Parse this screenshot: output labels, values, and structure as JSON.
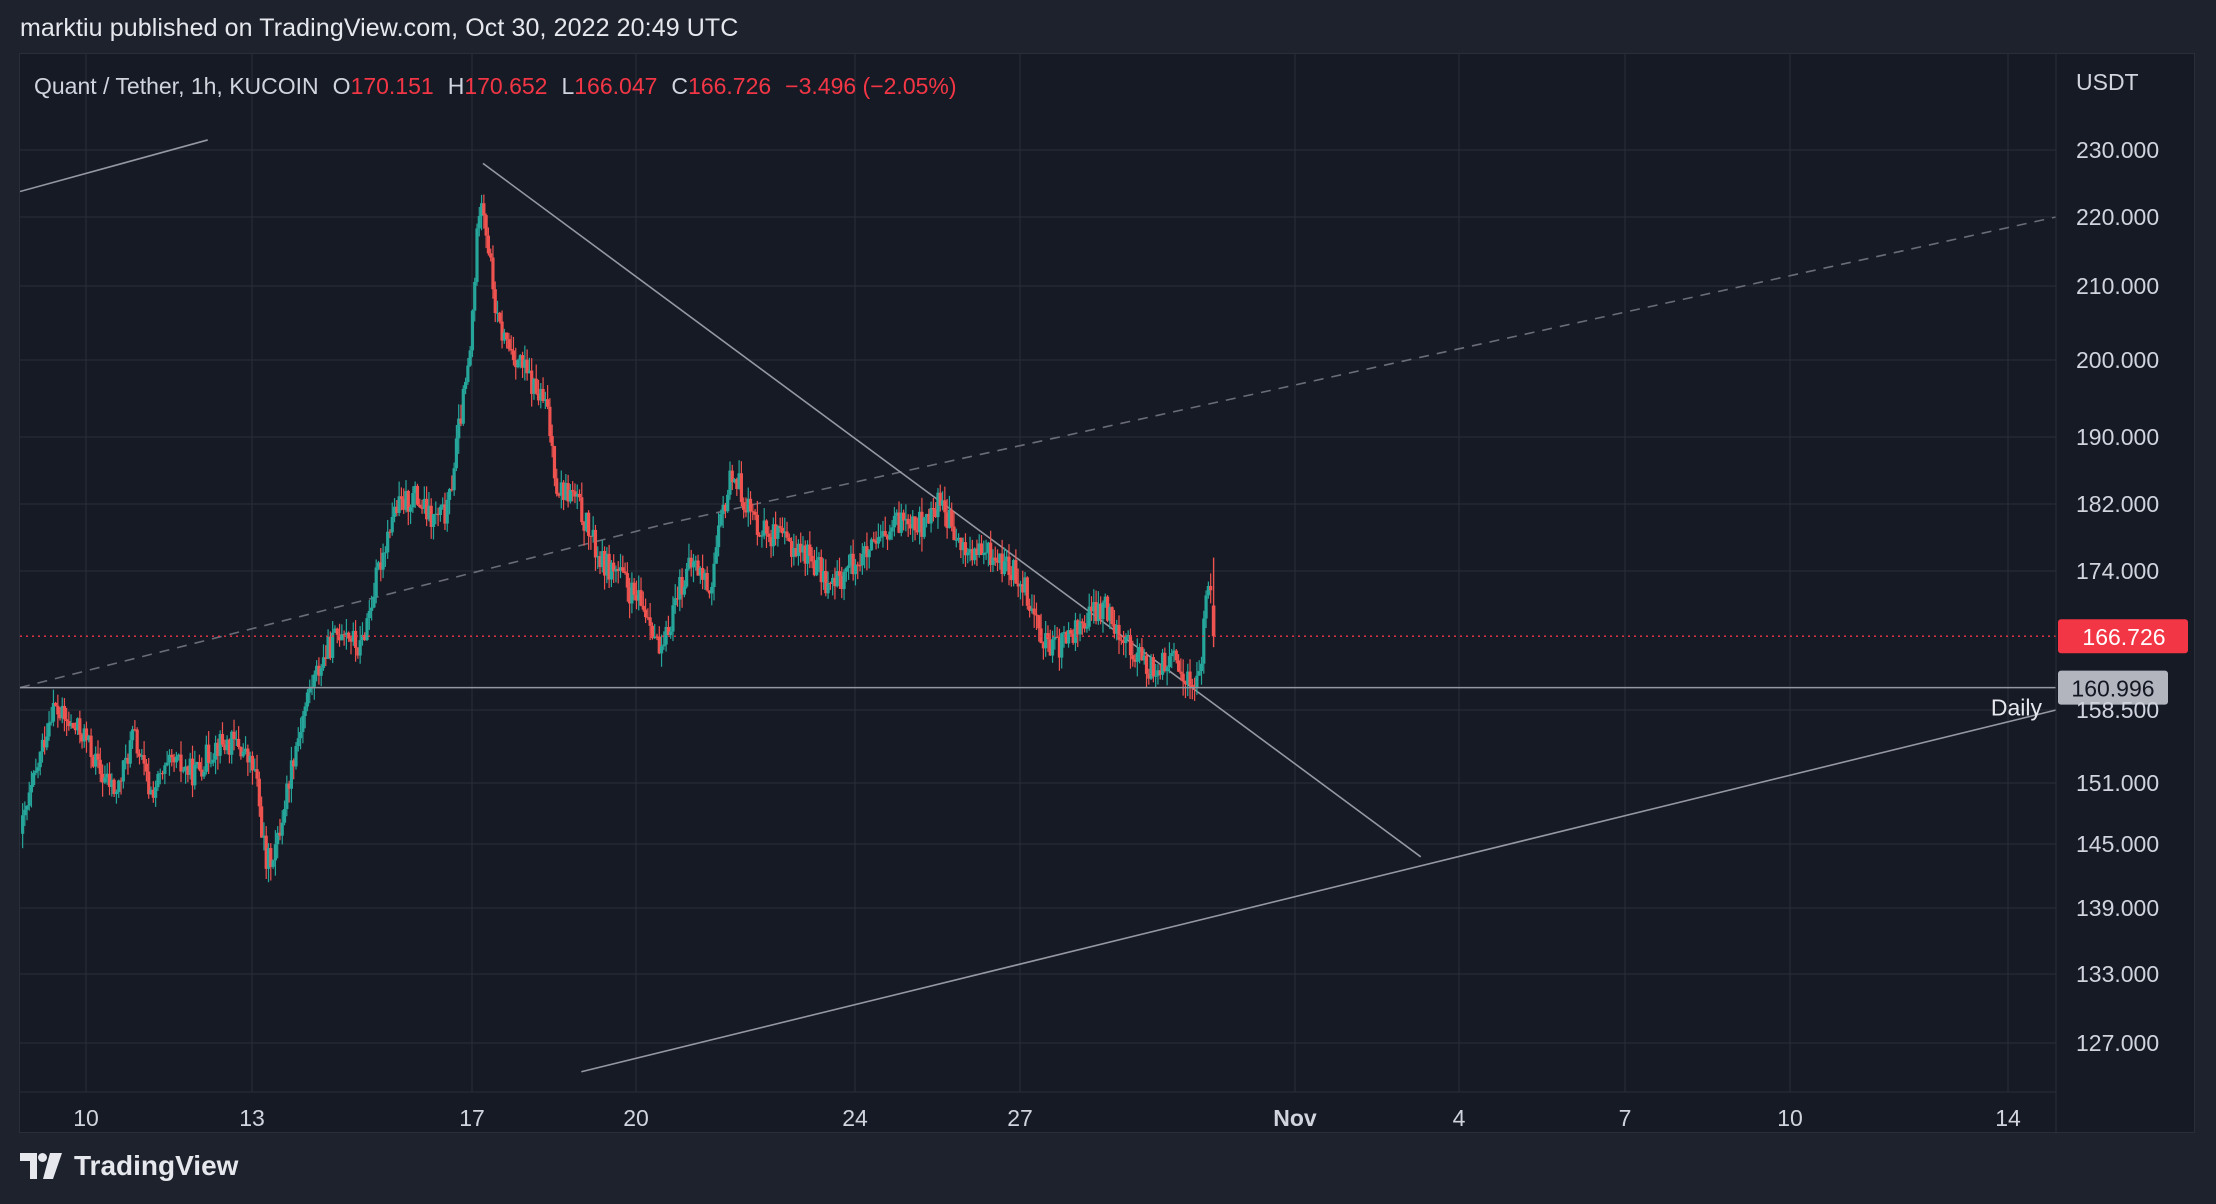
{
  "header": {
    "published_text": "marktiu published on TradingView.com, Oct 30, 2022 20:49 UTC"
  },
  "footer": {
    "brand": "TradingView"
  },
  "colors": {
    "background": "#161a25",
    "up": "#26a69a",
    "down": "#ef5350",
    "grid": "#2a2e39",
    "text": "#d1d4dc",
    "line": "#9598a1",
    "price_label_bg": "#f23645",
    "level_label_bg": "#b2b5be"
  },
  "chart_data": {
    "type": "candlestick",
    "symbol": "Quant / Tether, 1h, KUCOIN",
    "ohlc": {
      "o_label": "O",
      "o": "170.151",
      "h_label": "H",
      "h": "170.652",
      "l_label": "L",
      "l": "166.047",
      "c_label": "C",
      "c": "166.726",
      "change": "−3.496 (−2.05%)"
    },
    "currency": "USDT",
    "y_ticks": [
      {
        "value": 230,
        "label": "230.000"
      },
      {
        "value": 220,
        "label": "220.000"
      },
      {
        "value": 210,
        "label": "210.000"
      },
      {
        "value": 200,
        "label": "200.000"
      },
      {
        "value": 190,
        "label": "190.000"
      },
      {
        "value": 182,
        "label": "182.000"
      },
      {
        "value": 174,
        "label": "174.000"
      },
      {
        "value": 158.5,
        "label": "158.500"
      },
      {
        "value": 151,
        "label": "151.000"
      },
      {
        "value": 145,
        "label": "145.000"
      },
      {
        "value": 139,
        "label": "139.000"
      },
      {
        "value": 133,
        "label": "133.000"
      },
      {
        "value": 127,
        "label": "127.000"
      }
    ],
    "x_ticks": [
      {
        "day": 10,
        "label": "10",
        "bold": false
      },
      {
        "day": 13,
        "label": "13",
        "bold": false
      },
      {
        "day": 17,
        "label": "17",
        "bold": false
      },
      {
        "day": 20,
        "label": "20",
        "bold": false
      },
      {
        "day": 24,
        "label": "24",
        "bold": false
      },
      {
        "day": 27,
        "label": "27",
        "bold": false
      },
      {
        "day": 32,
        "label": "Nov",
        "bold": true
      },
      {
        "day": 35,
        "label": "4",
        "bold": false
      },
      {
        "day": 38,
        "label": "7",
        "bold": false
      },
      {
        "day": 41,
        "label": "10",
        "bold": false
      },
      {
        "day": 45,
        "label": "14",
        "bold": false
      }
    ],
    "last_price": {
      "value": 166.726,
      "label": "166.726"
    },
    "daily_level": {
      "value": 160.996,
      "label": "160.996",
      "name": "Daily"
    },
    "x_range_days": [
      8.75,
      46.1
    ],
    "price_path": [
      [
        8.8,
        146
      ],
      [
        9.1,
        152
      ],
      [
        9.4,
        159
      ],
      [
        9.7,
        157
      ],
      [
        10.0,
        156
      ],
      [
        10.3,
        152
      ],
      [
        10.6,
        150
      ],
      [
        10.9,
        156
      ],
      [
        11.2,
        150
      ],
      [
        11.6,
        153
      ],
      [
        12.0,
        152
      ],
      [
        12.4,
        155
      ],
      [
        12.8,
        155
      ],
      [
        13.1,
        152
      ],
      [
        13.3,
        143
      ],
      [
        13.5,
        145
      ],
      [
        13.8,
        154
      ],
      [
        14.1,
        161
      ],
      [
        14.4,
        165
      ],
      [
        14.7,
        168
      ],
      [
        15.0,
        165
      ],
      [
        15.3,
        173
      ],
      [
        15.6,
        181
      ],
      [
        16.0,
        183
      ],
      [
        16.3,
        180
      ],
      [
        16.6,
        181
      ],
      [
        16.8,
        191
      ],
      [
        17.0,
        200
      ],
      [
        17.2,
        225
      ],
      [
        17.35,
        215
      ],
      [
        17.5,
        205
      ],
      [
        17.7,
        202
      ],
      [
        17.9,
        200
      ],
      [
        18.2,
        196
      ],
      [
        18.4,
        194
      ],
      [
        18.6,
        184
      ],
      [
        18.9,
        183
      ],
      [
        19.1,
        180
      ],
      [
        19.4,
        175
      ],
      [
        19.7,
        174
      ],
      [
        20.0,
        171
      ],
      [
        20.3,
        169
      ],
      [
        20.5,
        164
      ],
      [
        20.8,
        172
      ],
      [
        21.1,
        175
      ],
      [
        21.4,
        172
      ],
      [
        21.6,
        180
      ],
      [
        21.8,
        186
      ],
      [
        22.2,
        180
      ],
      [
        22.6,
        178
      ],
      [
        22.9,
        177
      ],
      [
        23.2,
        176
      ],
      [
        23.6,
        172
      ],
      [
        24.0,
        175
      ],
      [
        24.3,
        176
      ],
      [
        24.6,
        178
      ],
      [
        25.0,
        181
      ],
      [
        25.3,
        179
      ],
      [
        25.6,
        183
      ],
      [
        25.9,
        177
      ],
      [
        26.2,
        176
      ],
      [
        26.5,
        176
      ],
      [
        26.9,
        174
      ],
      [
        27.1,
        173
      ],
      [
        27.3,
        169
      ],
      [
        27.6,
        165
      ],
      [
        28.0,
        167
      ],
      [
        28.3,
        169
      ],
      [
        28.6,
        170
      ],
      [
        28.9,
        167
      ],
      [
        29.1,
        165
      ],
      [
        29.4,
        163
      ],
      [
        29.8,
        164
      ],
      [
        30.1,
        162
      ],
      [
        30.2,
        161
      ],
      [
        30.35,
        164
      ],
      [
        30.45,
        174
      ],
      [
        30.52,
        170.151
      ]
    ],
    "trendlines": [
      {
        "name": "upper-channel-line",
        "p1": [
          8.75,
          223.8
        ],
        "p2": [
          12.2,
          231.5
        ],
        "style": "solid"
      },
      {
        "name": "midline",
        "p1": [
          8.75,
          161
        ],
        "p2": [
          46.1,
          220
        ],
        "style": "solid-then-dashed",
        "dash_from_day": 20.5
      },
      {
        "name": "lower-channel-line",
        "p1": [
          19.0,
          124.5
        ],
        "p2": [
          46.1,
          158.5
        ],
        "style": "solid"
      },
      {
        "name": "descending-trendline",
        "p1": [
          17.2,
          228
        ],
        "p2": [
          34.3,
          143.8
        ],
        "style": "solid"
      }
    ]
  }
}
